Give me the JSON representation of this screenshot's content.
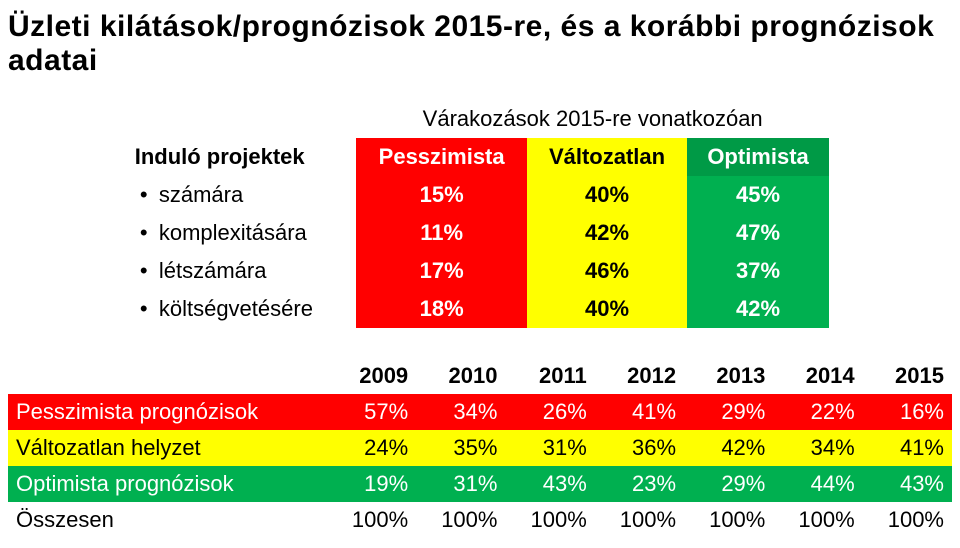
{
  "title": "Üzleti kilátások/prognózisok 2015-re, és a korábbi prognózisok adatai",
  "top": {
    "span_header": "Várakozások 2015-re vonatkozóan",
    "row_header_label": "Induló projektek",
    "columns": [
      {
        "label": "Pesszimista",
        "bg": "#ff0000",
        "fg": "#ffffff"
      },
      {
        "label": "Változatlan",
        "bg": "#ffff00",
        "fg": "#000000"
      },
      {
        "label": "Optimista",
        "bg": "#009a46",
        "fg": "#ffffff"
      }
    ],
    "rows": [
      {
        "label": "számára",
        "values": [
          "15%",
          "40%",
          "45%"
        ]
      },
      {
        "label": "komplexitására",
        "values": [
          "11%",
          "42%",
          "47%"
        ]
      },
      {
        "label": "létszámára",
        "values": [
          "17%",
          "46%",
          "37%"
        ]
      },
      {
        "label": "költségvetésére",
        "values": [
          "18%",
          "40%",
          "42%"
        ]
      }
    ],
    "cell_bgs": [
      "#ff0000",
      "#ffff00",
      "#00b050"
    ],
    "cell_fgs": [
      "#ffffff",
      "#000000",
      "#ffffff"
    ]
  },
  "bottom": {
    "years": [
      "2009",
      "2010",
      "2011",
      "2012",
      "2013",
      "2014",
      "2015"
    ],
    "rows": [
      {
        "label": "Pesszimista prognózisok",
        "class": "row-red",
        "values": [
          "57%",
          "34%",
          "26%",
          "41%",
          "29%",
          "22%",
          "16%"
        ]
      },
      {
        "label": "Változatlan helyzet",
        "class": "row-yellow",
        "values": [
          "24%",
          "35%",
          "31%",
          "36%",
          "42%",
          "34%",
          "41%"
        ]
      },
      {
        "label": "Optimista prognózisok",
        "class": "row-green",
        "values": [
          "19%",
          "31%",
          "43%",
          "23%",
          "29%",
          "44%",
          "43%"
        ]
      },
      {
        "label": "Összesen",
        "class": "row-plain",
        "values": [
          "100%",
          "100%",
          "100%",
          "100%",
          "100%",
          "100%",
          "100%"
        ]
      }
    ]
  },
  "colors": {
    "red": "#ff0000",
    "yellow": "#ffff00",
    "green_header": "#009a46",
    "green_body": "#00b050",
    "text_on_dark": "#ffffff",
    "text_on_light": "#000000",
    "background": "#ffffff"
  },
  "fonts": {
    "title_size_pt": 22,
    "body_size_pt": 16,
    "family": "Arial"
  }
}
